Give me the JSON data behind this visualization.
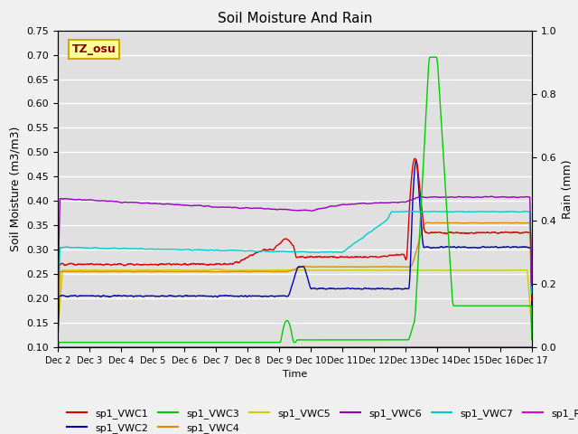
{
  "title": "Soil Moisture And Rain",
  "ylabel_left": "Soil Moisture (m3/m3)",
  "ylabel_right": "Rain (mm)",
  "xlabel": "Time",
  "ylim_left": [
    0.1,
    0.75
  ],
  "ylim_right": [
    0.0,
    1.0
  ],
  "annotation_text": "TZ_osu",
  "annotation_bg": "#FFFF99",
  "annotation_border": "#CCAA00",
  "plot_bg_color": "#E0E0E0",
  "fig_bg_color": "#F0F0F0",
  "series_colors": {
    "sp1_VWC1": "#DD0000",
    "sp1_VWC2": "#0000BB",
    "sp1_VWC3": "#00CC00",
    "sp1_VWC4": "#DD8800",
    "sp1_VWC5": "#CCCC00",
    "sp1_VWC6": "#9900BB",
    "sp1_VWC7": "#00CCCC",
    "sp1_Rain": "#DD00DD"
  },
  "x_tick_labels": [
    "Dec 2",
    "Dec 3",
    "Dec 4",
    "Dec 5",
    "Dec 6",
    "Dec 7",
    "Dec 8",
    "Dec 9",
    "Dec 10",
    "Dec 11",
    "Dec 12",
    "Dec 13",
    "Dec 14",
    "Dec 15",
    "Dec 16",
    "Dec 17"
  ],
  "yticks_left": [
    0.1,
    0.15,
    0.2,
    0.25,
    0.3,
    0.35,
    0.4,
    0.45,
    0.5,
    0.55,
    0.6,
    0.65,
    0.7,
    0.75
  ],
  "yticks_right": [
    0.0,
    0.2,
    0.4,
    0.6,
    0.8,
    1.0
  ],
  "n_points": 2000
}
